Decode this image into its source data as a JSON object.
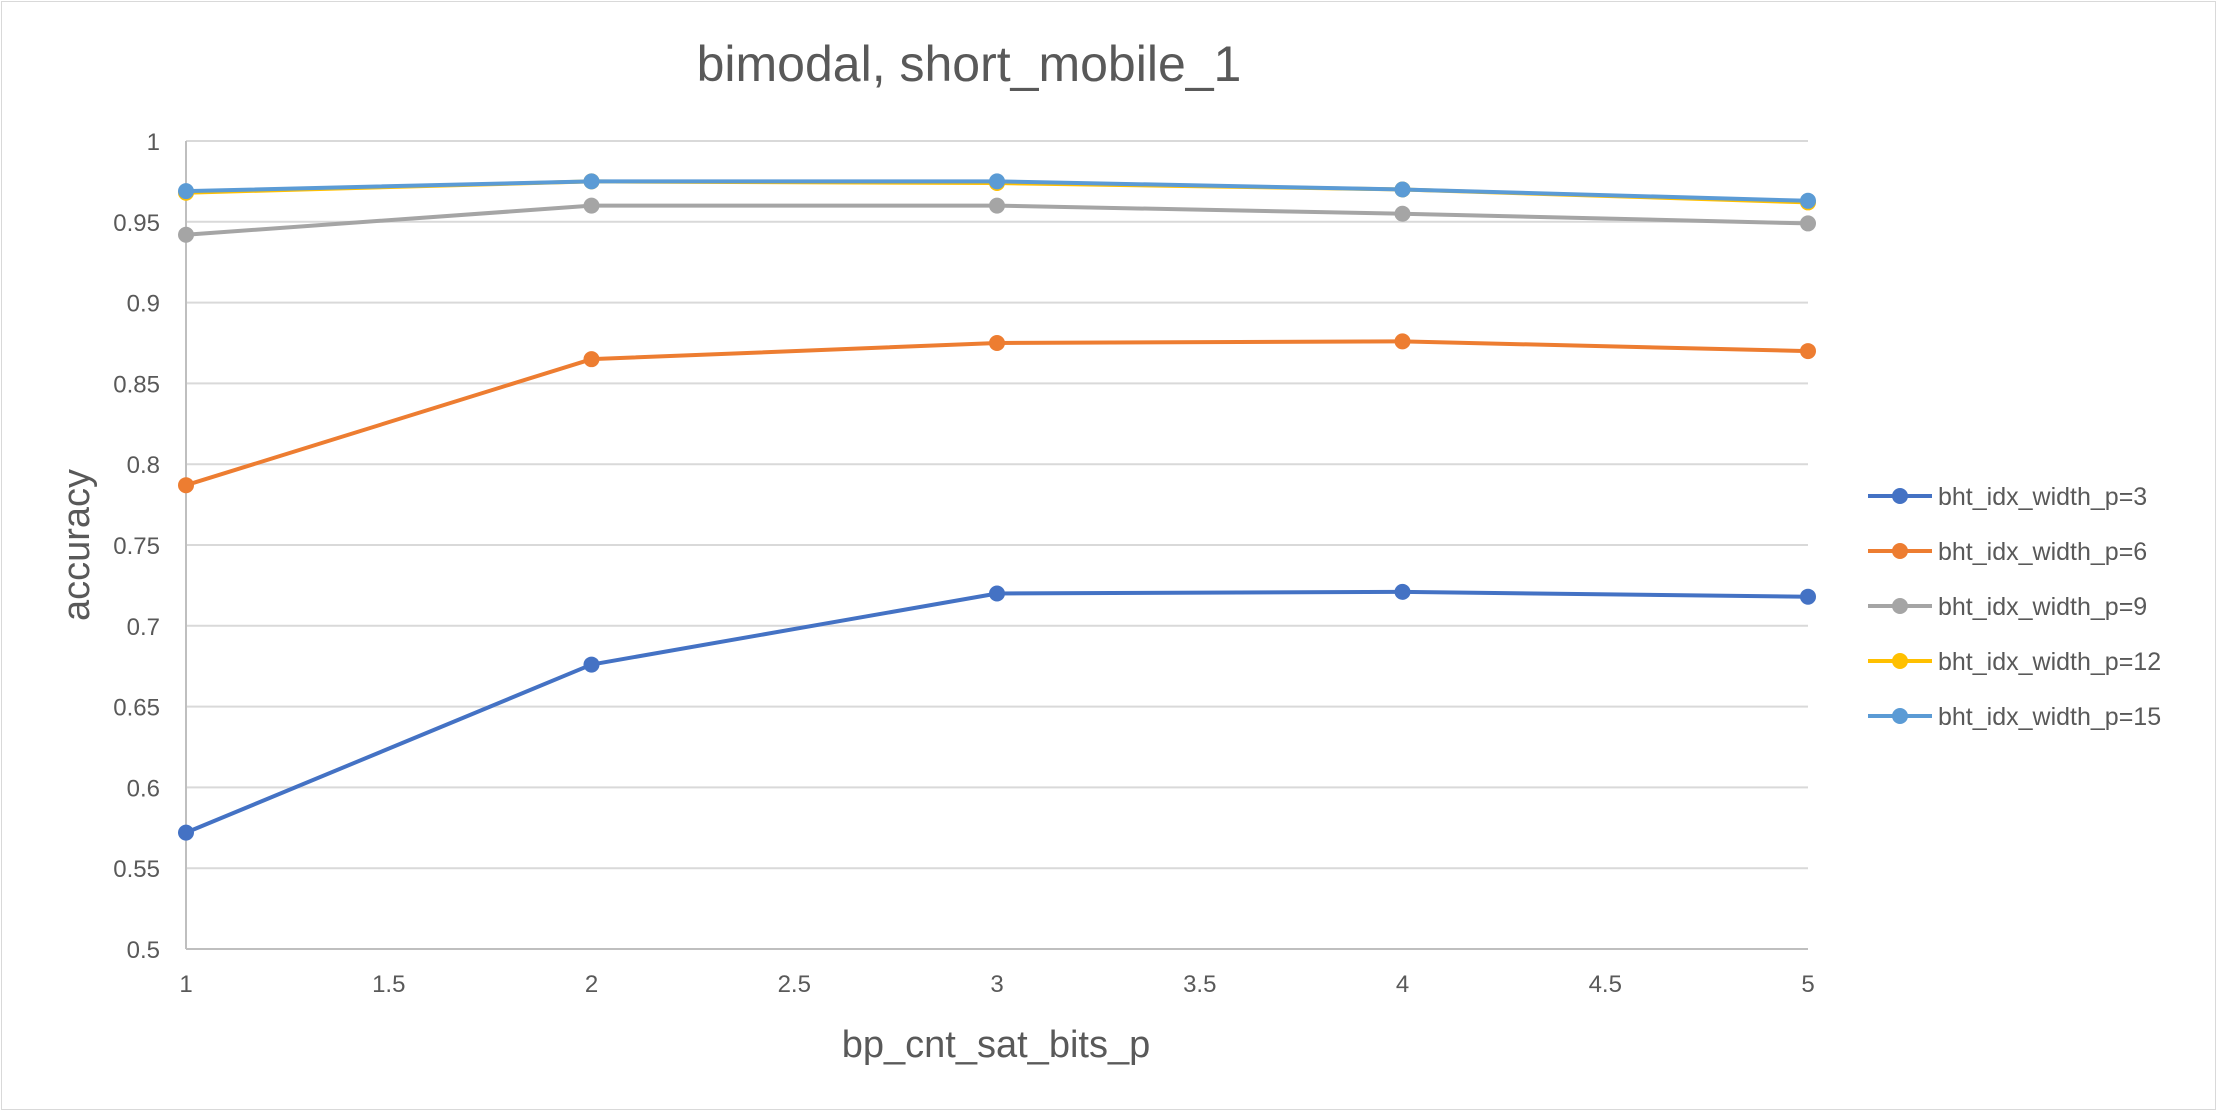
{
  "chart_data": {
    "type": "line",
    "title": "bimodal, short_mobile_1",
    "xlabel": "bp_cnt_sat_bits_p",
    "ylabel": "accuracy",
    "x": [
      1,
      2,
      3,
      4,
      5
    ],
    "xlim": [
      1,
      5
    ],
    "ylim": [
      0.5,
      1
    ],
    "xticks": [
      "1",
      "1.5",
      "2",
      "2.5",
      "3",
      "3.5",
      "4",
      "4.5",
      "5"
    ],
    "yticks": [
      "0.5",
      "0.55",
      "0.6",
      "0.65",
      "0.7",
      "0.75",
      "0.8",
      "0.85",
      "0.9",
      "0.95",
      "1"
    ],
    "grid": true,
    "legend_position": "right",
    "series": [
      {
        "name": "bht_idx_width_p=3",
        "color": "#4472c4",
        "values": [
          0.572,
          0.676,
          0.72,
          0.721,
          0.718
        ]
      },
      {
        "name": "bht_idx_width_p=6",
        "color": "#ed7d31",
        "values": [
          0.787,
          0.865,
          0.875,
          0.876,
          0.87
        ]
      },
      {
        "name": "bht_idx_width_p=9",
        "color": "#a5a5a5",
        "values": [
          0.942,
          0.96,
          0.96,
          0.955,
          0.949
        ]
      },
      {
        "name": "bht_idx_width_p=12",
        "color": "#ffc000",
        "values": [
          0.968,
          0.975,
          0.974,
          0.97,
          0.962
        ]
      },
      {
        "name": "bht_idx_width_p=15",
        "color": "#5b9bd5",
        "values": [
          0.969,
          0.975,
          0.975,
          0.97,
          0.963
        ]
      }
    ]
  }
}
